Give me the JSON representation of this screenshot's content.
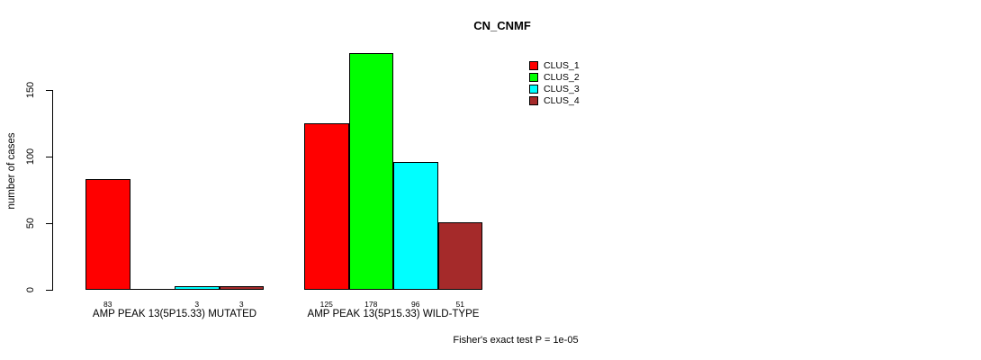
{
  "title": "CN_CNMF",
  "y_axis": {
    "label": "number of cases",
    "ticks": [
      0,
      50,
      100,
      150
    ]
  },
  "legend": {
    "items": [
      {
        "label": "CLUS_1",
        "color": "#FF0000"
      },
      {
        "label": "CLUS_2",
        "color": "#00FF00"
      },
      {
        "label": "CLUS_3",
        "color": "#00FFFF"
      },
      {
        "label": "CLUS_4",
        "color": "#A52A2A"
      }
    ]
  },
  "footer": "Fisher's exact test P = 1e-05",
  "chart_data": {
    "type": "bar",
    "grouped": true,
    "title": "CN_CNMF",
    "ylabel": "number of cases",
    "ylim": [
      0,
      178
    ],
    "yticks": [
      0,
      50,
      100,
      150
    ],
    "grid": false,
    "legend_position": "top-right",
    "categories": [
      "AMP PEAK 13(5P15.33) MUTATED",
      "AMP PEAK 13(5P15.33) WILD-TYPE"
    ],
    "series": [
      {
        "name": "CLUS_1",
        "color": "#FF0000",
        "values": [
          83,
          125
        ]
      },
      {
        "name": "CLUS_2",
        "color": "#00FF00",
        "values": [
          0,
          178
        ]
      },
      {
        "name": "CLUS_3",
        "color": "#00FFFF",
        "values": [
          3,
          96
        ]
      },
      {
        "name": "CLUS_4",
        "color": "#A52A2A",
        "values": [
          3,
          51
        ]
      }
    ],
    "bar_labels": [
      [
        "83",
        null,
        "3",
        "3"
      ],
      [
        "125",
        "178",
        "96",
        "51"
      ]
    ]
  }
}
